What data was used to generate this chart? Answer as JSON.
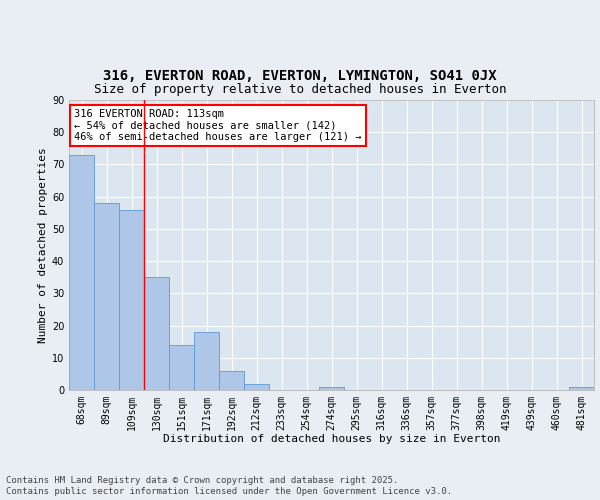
{
  "title_line1": "316, EVERTON ROAD, EVERTON, LYMINGTON, SO41 0JX",
  "title_line2": "Size of property relative to detached houses in Everton",
  "xlabel": "Distribution of detached houses by size in Everton",
  "ylabel": "Number of detached properties",
  "categories": [
    "68sqm",
    "89sqm",
    "109sqm",
    "130sqm",
    "151sqm",
    "171sqm",
    "192sqm",
    "212sqm",
    "233sqm",
    "254sqm",
    "274sqm",
    "295sqm",
    "316sqm",
    "336sqm",
    "357sqm",
    "377sqm",
    "398sqm",
    "419sqm",
    "439sqm",
    "460sqm",
    "481sqm"
  ],
  "values": [
    73,
    58,
    56,
    35,
    14,
    18,
    6,
    2,
    0,
    0,
    1,
    0,
    0,
    0,
    0,
    0,
    0,
    0,
    0,
    0,
    1
  ],
  "bar_color": "#aec6e8",
  "bar_edge_color": "#5b9bd5",
  "vline_x_index": 2.5,
  "annotation_line1": "316 EVERTON ROAD: 113sqm",
  "annotation_line2": "← 54% of detached houses are smaller (142)",
  "annotation_line3": "46% of semi-detached houses are larger (121) →",
  "annotation_box_color": "white",
  "annotation_box_edge_color": "red",
  "ylim": [
    0,
    90
  ],
  "yticks": [
    0,
    10,
    20,
    30,
    40,
    50,
    60,
    70,
    80,
    90
  ],
  "background_color": "#e8eef4",
  "plot_bg_color": "#dce6f0",
  "grid_color": "white",
  "footer_line1": "Contains HM Land Registry data © Crown copyright and database right 2025.",
  "footer_line2": "Contains public sector information licensed under the Open Government Licence v3.0.",
  "title_fontsize": 10,
  "subtitle_fontsize": 9,
  "axis_label_fontsize": 8,
  "tick_fontsize": 7,
  "annotation_fontsize": 7.5,
  "footer_fontsize": 6.5
}
